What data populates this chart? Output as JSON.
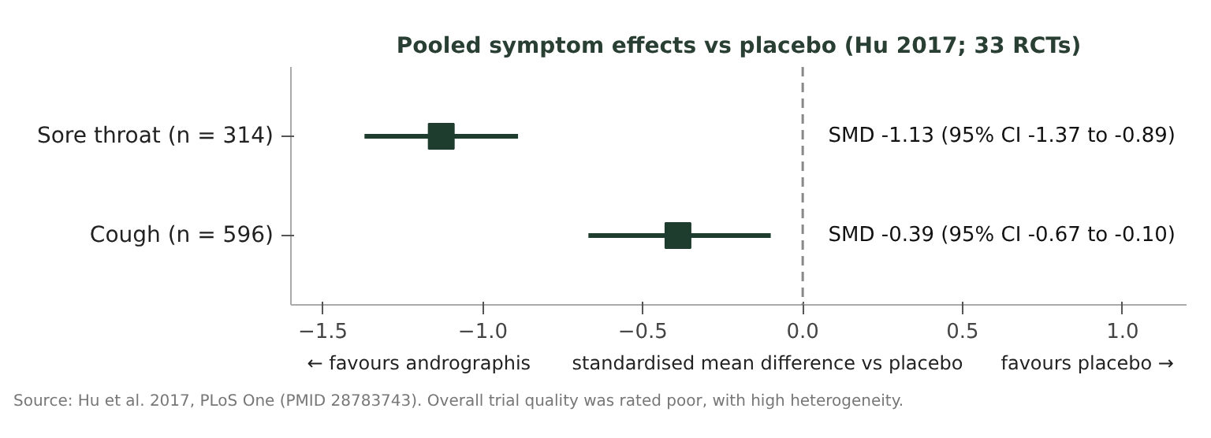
{
  "chart_data": {
    "type": "scatter",
    "orientation": "horizontal",
    "title": "Pooled symptom effects vs placebo (Hu 2017; 33 RCTs)",
    "xlabel": "standardised mean difference vs placebo",
    "categories": [
      "Sore throat (n = 314)",
      "Cough (n = 596)"
    ],
    "values": [
      -1.13,
      -0.39
    ],
    "errors": [
      [
        -1.37,
        -0.89
      ],
      [
        -0.67,
        -0.1
      ]
    ],
    "color": "#1f3d2e",
    "marker": "square",
    "xlim": [
      -1.6,
      1.2
    ],
    "xticks": [
      {
        "value": -1.5,
        "label": "−1.5"
      },
      {
        "value": -1.0,
        "label": "−1.0"
      },
      {
        "value": -0.5,
        "label": "−0.5"
      },
      {
        "value": 0,
        "label": "0.0"
      },
      {
        "value": 0.5,
        "label": "0.5"
      },
      {
        "value": 1.0,
        "label": "1.0"
      }
    ],
    "ref_lines": [
      {
        "axis": "x",
        "value": 0,
        "label": null,
        "color": "#888888",
        "line_style": "dashed"
      }
    ],
    "annotations": [
      "SMD -1.13 (95% CI -1.37 to -0.89)",
      "SMD -0.39 (95% CI -0.67 to -0.10)",
      "← favours andrographis",
      "favours placebo →",
      "Source: Hu et al. 2017, PLoS One (PMID 28783743). Overall trial quality was rated poor, with high heterogeneity."
    ],
    "grid": false
  }
}
